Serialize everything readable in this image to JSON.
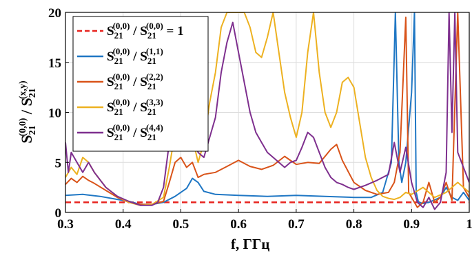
{
  "chart_data": {
    "type": "line",
    "xlabel_main": "f, ",
    "xlabel_unit": "ГГц",
    "ylabel": {
      "num_base": "S",
      "num_sub": "21",
      "num_sup": "(0,0)",
      "sep": " / ",
      "den_base": "S",
      "den_sub": "21",
      "den_sup": "(x,y)"
    },
    "xlim": [
      0.3,
      1.0
    ],
    "ylim": [
      0,
      20
    ],
    "xticks": [
      "0.3",
      "0.4",
      "0.5",
      "0.6",
      "0.7",
      "0.8",
      "0.9",
      "1"
    ],
    "xtick_values": [
      0.3,
      0.4,
      0.5,
      0.6,
      0.7,
      0.8,
      0.9,
      1.0
    ],
    "yticks": [
      "0",
      "5",
      "10",
      "15",
      "20"
    ],
    "ytick_values": [
      0,
      5,
      10,
      15,
      20
    ],
    "grid": true,
    "legend_position": "top-left",
    "series": [
      {
        "name": "S21(0,0) / S21(0,0) = 1",
        "legend": {
          "num_sup": "(0,0)",
          "den_sup": "(0,0)",
          "suffix": " = 1"
        },
        "color": "#e8231e",
        "dashed": true,
        "x": [
          0.3,
          1.0
        ],
        "y": [
          1.0,
          1.0
        ]
      },
      {
        "name": "S21(0,0) / S21(1,1)",
        "legend": {
          "num_sup": "(0,0)",
          "den_sup": "(1,1)",
          "suffix": ""
        },
        "color": "#1f77c4",
        "dashed": false,
        "x": [
          0.3,
          0.33,
          0.36,
          0.39,
          0.41,
          0.43,
          0.45,
          0.47,
          0.49,
          0.51,
          0.52,
          0.53,
          0.54,
          0.56,
          0.6,
          0.65,
          0.7,
          0.75,
          0.8,
          0.83,
          0.85,
          0.865,
          0.872,
          0.878,
          0.883,
          0.89,
          0.9,
          0.905,
          0.908,
          0.912,
          0.92,
          0.93,
          0.95,
          0.96,
          0.97,
          0.98,
          0.99,
          1.0
        ],
        "y": [
          1.7,
          1.8,
          1.6,
          1.3,
          1.1,
          0.8,
          0.8,
          1.0,
          1.6,
          2.4,
          3.4,
          3.0,
          2.1,
          1.8,
          1.7,
          1.6,
          1.7,
          1.6,
          1.5,
          1.5,
          2.0,
          5.0,
          20.0,
          5.0,
          3.0,
          5.0,
          12.0,
          20.0,
          2.0,
          1.0,
          0.9,
          1.0,
          1.5,
          2.5,
          1.5,
          1.2,
          2.0,
          1.2
        ]
      },
      {
        "name": "S21(0,0) / S21(2,2)",
        "legend": {
          "num_sup": "(0,0)",
          "den_sup": "(2,2)",
          "suffix": ""
        },
        "color": "#d95319",
        "dashed": false,
        "x": [
          0.3,
          0.31,
          0.32,
          0.33,
          0.34,
          0.35,
          0.37,
          0.39,
          0.41,
          0.43,
          0.45,
          0.47,
          0.48,
          0.49,
          0.5,
          0.51,
          0.52,
          0.53,
          0.54,
          0.56,
          0.58,
          0.6,
          0.62,
          0.64,
          0.66,
          0.68,
          0.7,
          0.72,
          0.74,
          0.76,
          0.77,
          0.78,
          0.8,
          0.82,
          0.84,
          0.86,
          0.87,
          0.88,
          0.89,
          0.895,
          0.9,
          0.91,
          0.92,
          0.93,
          0.94,
          0.95,
          0.96,
          0.97,
          0.98,
          0.99,
          1.0
        ],
        "y": [
          2.8,
          3.4,
          3.0,
          3.6,
          3.2,
          2.9,
          2.2,
          1.5,
          1.0,
          0.8,
          0.8,
          1.1,
          3.0,
          5.0,
          5.5,
          4.5,
          5.0,
          3.5,
          3.8,
          4.0,
          4.6,
          5.2,
          4.6,
          4.3,
          4.7,
          5.6,
          4.8,
          5.0,
          4.9,
          6.3,
          6.8,
          5.2,
          3.0,
          2.2,
          1.8,
          2.0,
          3.0,
          6.0,
          19.5,
          2.0,
          1.5,
          0.5,
          1.0,
          3.0,
          1.0,
          1.5,
          3.0,
          1.2,
          20.0,
          2.5,
          1.5
        ]
      },
      {
        "name": "S21(0,0) / S21(3,3)",
        "legend": {
          "num_sup": "(0,0)",
          "den_sup": "(3,3)",
          "suffix": ""
        },
        "color": "#edb120",
        "dashed": false,
        "x": [
          0.3,
          0.31,
          0.32,
          0.33,
          0.34,
          0.35,
          0.37,
          0.39,
          0.41,
          0.43,
          0.45,
          0.47,
          0.48,
          0.49,
          0.5,
          0.51,
          0.52,
          0.53,
          0.54,
          0.55,
          0.56,
          0.57,
          0.58,
          0.59,
          0.6,
          0.61,
          0.62,
          0.63,
          0.64,
          0.65,
          0.66,
          0.67,
          0.68,
          0.69,
          0.7,
          0.71,
          0.72,
          0.73,
          0.74,
          0.75,
          0.76,
          0.77,
          0.78,
          0.79,
          0.8,
          0.81,
          0.82,
          0.83,
          0.84,
          0.85,
          0.86,
          0.87,
          0.88,
          0.89,
          0.9,
          0.92,
          0.94,
          0.96,
          0.98,
          1.0
        ],
        "y": [
          3.5,
          4.5,
          3.8,
          5.5,
          5.0,
          4.0,
          2.5,
          1.6,
          1.0,
          0.7,
          0.8,
          1.5,
          4.5,
          8.0,
          7.0,
          9.0,
          7.5,
          5.0,
          7.0,
          11.0,
          14.0,
          18.5,
          20.0,
          20.0,
          20.0,
          20.0,
          18.5,
          16.0,
          15.5,
          17.5,
          20.0,
          16.0,
          12.0,
          9.5,
          7.5,
          10.0,
          16.0,
          20.0,
          14.0,
          10.0,
          8.5,
          10.0,
          13.0,
          13.5,
          12.5,
          9.0,
          5.5,
          3.5,
          2.2,
          1.6,
          1.4,
          1.3,
          1.5,
          2.0,
          1.8,
          2.5,
          1.5,
          2.0,
          3.0,
          2.0
        ]
      },
      {
        "name": "S21(0,0) / S21(4,4)",
        "legend": {
          "num_sup": "(0,0)",
          "den_sup": "(4,4)",
          "suffix": ""
        },
        "color": "#7e2f8e",
        "dashed": false,
        "x": [
          0.3,
          0.305,
          0.31,
          0.32,
          0.33,
          0.34,
          0.35,
          0.37,
          0.39,
          0.41,
          0.43,
          0.45,
          0.46,
          0.47,
          0.48,
          0.49,
          0.5,
          0.51,
          0.52,
          0.53,
          0.54,
          0.55,
          0.56,
          0.57,
          0.58,
          0.59,
          0.6,
          0.61,
          0.62,
          0.63,
          0.64,
          0.65,
          0.66,
          0.67,
          0.68,
          0.69,
          0.7,
          0.71,
          0.72,
          0.73,
          0.74,
          0.75,
          0.76,
          0.77,
          0.78,
          0.79,
          0.8,
          0.82,
          0.84,
          0.86,
          0.87,
          0.88,
          0.89,
          0.9,
          0.91,
          0.92,
          0.93,
          0.94,
          0.95,
          0.96,
          0.965,
          0.97,
          0.975,
          0.98,
          0.99,
          1.0
        ],
        "y": [
          7.0,
          4.0,
          6.0,
          5.0,
          4.0,
          5.0,
          4.0,
          2.5,
          1.6,
          1.1,
          0.7,
          0.7,
          1.0,
          2.5,
          7.0,
          10.0,
          7.5,
          10.5,
          8.0,
          6.0,
          5.5,
          7.5,
          9.5,
          14.0,
          17.0,
          19.0,
          16.0,
          13.0,
          10.0,
          8.0,
          7.0,
          6.0,
          5.5,
          5.0,
          4.5,
          5.0,
          5.2,
          6.5,
          8.0,
          7.5,
          6.0,
          4.5,
          3.5,
          3.0,
          2.8,
          2.5,
          2.3,
          2.7,
          3.2,
          3.8,
          7.0,
          4.0,
          6.5,
          3.0,
          1.0,
          0.5,
          1.5,
          0.3,
          1.0,
          4.0,
          20.0,
          8.0,
          20.0,
          6.0,
          4.5,
          3.0
        ]
      }
    ]
  }
}
